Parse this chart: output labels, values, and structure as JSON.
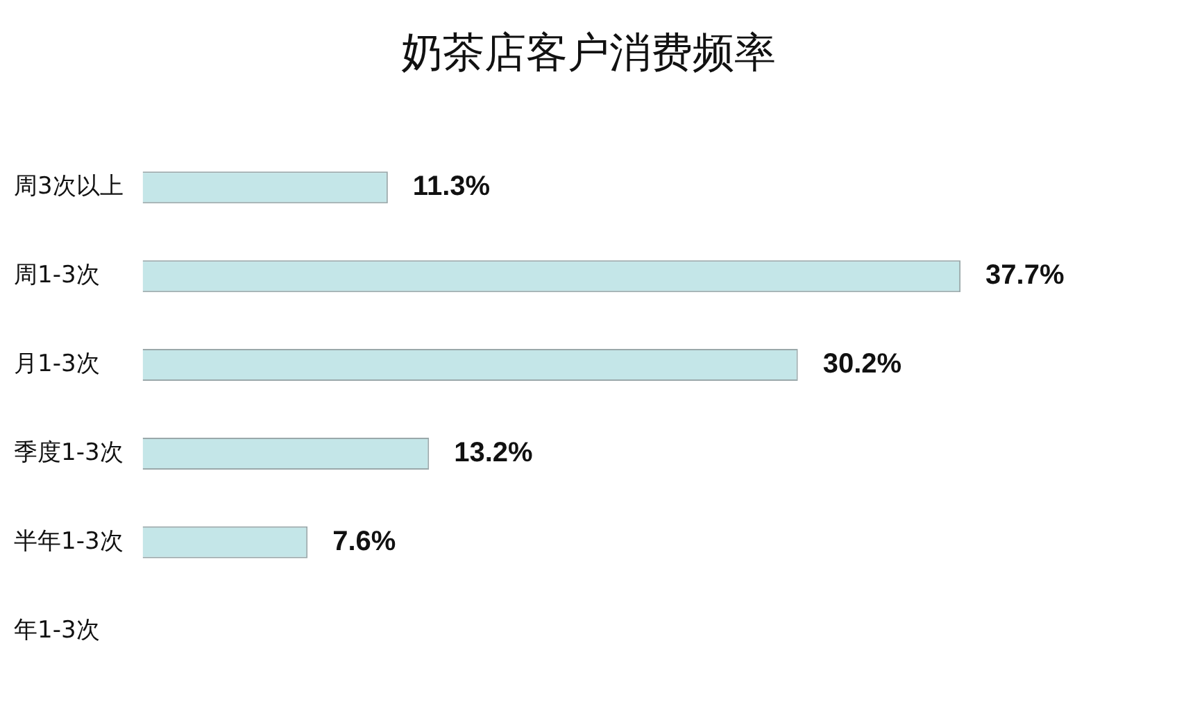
{
  "chart_data": {
    "type": "bar",
    "orientation": "horizontal",
    "title": "奶茶店客户消费频率",
    "categories": [
      "周3次以上",
      "周1-3次",
      "月1-3次",
      "季度1-3次",
      "半年1-3次",
      "年1-3次"
    ],
    "values": [
      11.3,
      37.7,
      30.2,
      13.2,
      7.6,
      null
    ],
    "value_labels": [
      "11.3%",
      "37.7%",
      "30.2%",
      "13.2%",
      "7.6%",
      null
    ],
    "color": "#c4e6e8",
    "legend": false
  }
}
